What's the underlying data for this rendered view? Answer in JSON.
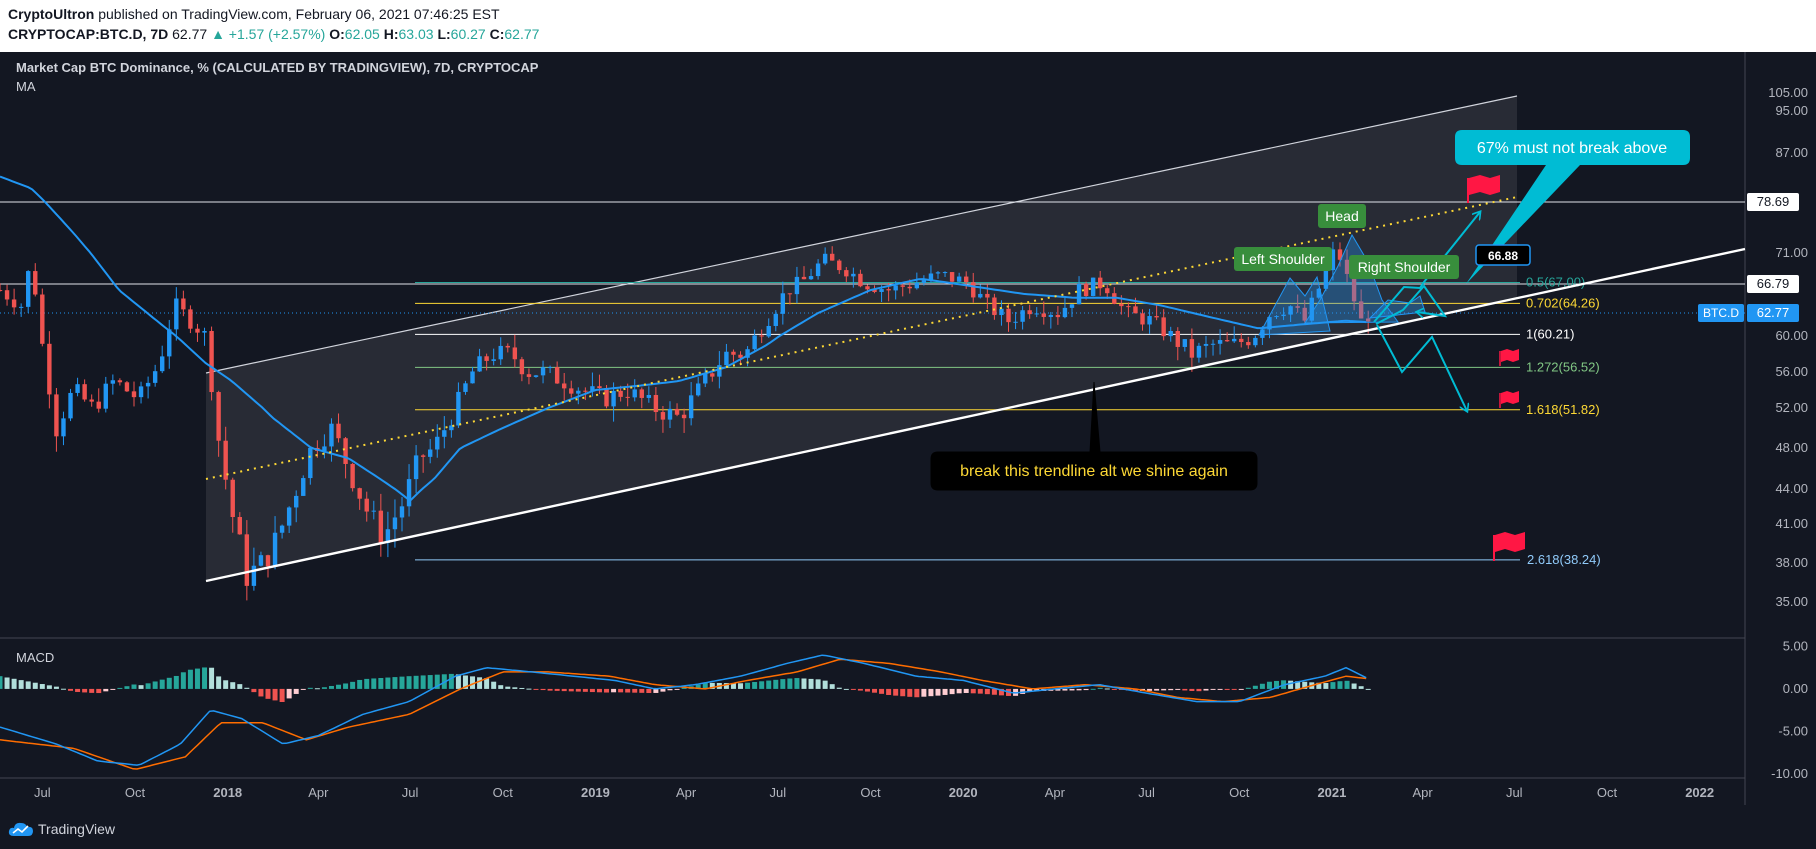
{
  "header": {
    "author": "CryptoUltron",
    "published_text": "published on TradingView.com, February 06, 2021 07:46:25 EST",
    "symbol_interval": "CRYPTOCAP:BTC.D, 7D",
    "last": "62.77",
    "change": "▲ +1.57 (+2.57%)",
    "o_label": "O:",
    "o": "62.05",
    "h_label": "H:",
    "h": "63.03",
    "l_label": "L:",
    "l": "60.27",
    "c_label": "C:",
    "c": "62.77"
  },
  "legend": {
    "title": "Market Cap BTC Dominance, % (CALCULATED BY TRADINGVIEW), 7D, CRYPTOCAP",
    "ma": "MA",
    "macd": "MACD"
  },
  "footer": {
    "brand": "TradingView"
  },
  "colors": {
    "background": "#131722",
    "up": "#2196f3",
    "down": "#ef5350",
    "ma": "#2196f3",
    "signal": "#ff6d00",
    "hist_up_strong": "#26a69a",
    "hist_up_weak": "#b2dfdb",
    "hist_down_strong": "#ef5350",
    "hist_down_weak": "#ffcdd2",
    "annotation": "#00bcd4"
  },
  "chart_data": {
    "type": "candlestick",
    "price_axis": {
      "min": 33,
      "max": 106,
      "ticks": [
        "105.00",
        "95.00",
        "87.00",
        "78.69",
        "71.00",
        "66.79",
        "60.00",
        "56.00",
        "52.00",
        "48.00",
        "44.00",
        "41.00",
        "38.00",
        "35.00"
      ],
      "tick_values": [
        105,
        95,
        87,
        78.69,
        71,
        66.79,
        60,
        56,
        52,
        48,
        44,
        41,
        38,
        35
      ]
    },
    "time_axis": {
      "ticks": [
        "Jul",
        "Oct",
        "2018",
        "Apr",
        "Jul",
        "Oct",
        "2019",
        "Apr",
        "Jul",
        "Oct",
        "2020",
        "Apr",
        "Jul",
        "Oct",
        "2021",
        "Apr",
        "Jul",
        "Oct",
        "2022"
      ],
      "start": "2017-05-20",
      "end": "2022-02-15"
    },
    "price_anchors": [
      [
        "2017-05-20",
        66
      ],
      [
        "2017-06-10",
        64
      ],
      [
        "2017-06-20",
        70
      ],
      [
        "2017-07-01",
        59
      ],
      [
        "2017-07-15",
        50
      ],
      [
        "2017-08-01",
        54
      ],
      [
        "2017-08-20",
        52
      ],
      [
        "2017-09-10",
        55
      ],
      [
        "2017-10-05",
        53
      ],
      [
        "2017-10-25",
        57
      ],
      [
        "2017-11-10",
        64
      ],
      [
        "2017-11-25",
        62
      ],
      [
        "2017-12-10",
        60
      ],
      [
        "2017-12-24",
        48
      ],
      [
        "2018-01-05",
        42
      ],
      [
        "2018-01-20",
        37
      ],
      [
        "2018-02-05",
        38
      ],
      [
        "2018-02-20",
        40
      ],
      [
        "2018-03-10",
        44
      ],
      [
        "2018-03-25",
        48
      ],
      [
        "2018-04-15",
        50
      ],
      [
        "2018-05-05",
        45
      ],
      [
        "2018-05-20",
        42
      ],
      [
        "2018-06-05",
        40
      ],
      [
        "2018-06-25",
        43
      ],
      [
        "2018-07-10",
        47
      ],
      [
        "2018-07-25",
        48
      ],
      [
        "2018-08-15",
        52
      ],
      [
        "2018-09-01",
        56
      ],
      [
        "2018-09-20",
        58
      ],
      [
        "2018-10-10",
        58
      ],
      [
        "2018-10-25",
        56
      ],
      [
        "2018-11-10",
        56
      ],
      [
        "2018-12-01",
        55
      ],
      [
        "2018-12-20",
        54
      ],
      [
        "2019-01-10",
        53
      ],
      [
        "2019-02-01",
        54
      ],
      [
        "2019-03-01",
        52
      ],
      [
        "2019-03-25",
        51
      ],
      [
        "2019-04-20",
        55
      ],
      [
        "2019-05-10",
        58
      ],
      [
        "2019-05-30",
        58
      ],
      [
        "2019-06-20",
        62
      ],
      [
        "2019-07-10",
        66
      ],
      [
        "2019-07-25",
        67
      ],
      [
        "2019-08-15",
        70
      ],
      [
        "2019-09-05",
        69
      ],
      [
        "2019-09-25",
        67
      ],
      [
        "2019-10-20",
        66
      ],
      [
        "2019-11-15",
        67
      ],
      [
        "2019-12-10",
        68
      ],
      [
        "2020-01-05",
        67
      ],
      [
        "2020-01-25",
        64
      ],
      [
        "2020-02-15",
        62
      ],
      [
        "2020-03-10",
        64
      ],
      [
        "2020-04-05",
        63
      ],
      [
        "2020-04-25",
        66
      ],
      [
        "2020-05-20",
        67
      ],
      [
        "2020-06-10",
        63
      ],
      [
        "2020-07-05",
        62
      ],
      [
        "2020-07-25",
        60
      ],
      [
        "2020-08-15",
        58
      ],
      [
        "2020-09-05",
        59
      ],
      [
        "2020-09-25",
        59
      ],
      [
        "2020-10-15",
        60
      ],
      [
        "2020-11-01",
        63
      ],
      [
        "2020-11-20",
        64
      ],
      [
        "2020-12-05",
        62
      ],
      [
        "2020-12-25",
        68
      ],
      [
        "2021-01-05",
        72
      ],
      [
        "2021-01-20",
        66
      ],
      [
        "2021-02-01",
        61
      ],
      [
        "2021-02-06",
        62.77
      ]
    ],
    "ma_anchors": [
      [
        "2017-05-20",
        83
      ],
      [
        "2017-06-20",
        81
      ],
      [
        "2017-08-01",
        74
      ],
      [
        "2017-09-15",
        66
      ],
      [
        "2017-11-01",
        61
      ],
      [
        "2017-12-10",
        57
      ],
      [
        "2018-01-05",
        55
      ],
      [
        "2018-02-15",
        51
      ],
      [
        "2018-03-25",
        48
      ],
      [
        "2018-05-01",
        47
      ],
      [
        "2018-06-01",
        45
      ],
      [
        "2018-07-01",
        43
      ],
      [
        "2018-07-25",
        45
      ],
      [
        "2018-08-20",
        48
      ],
      [
        "2018-10-01",
        50
      ],
      [
        "2018-11-15",
        52
      ],
      [
        "2019-01-01",
        54
      ],
      [
        "2019-02-15",
        54.5
      ],
      [
        "2019-03-25",
        55
      ],
      [
        "2019-05-10",
        56.5
      ],
      [
        "2019-06-20",
        59
      ],
      [
        "2019-08-10",
        63
      ],
      [
        "2019-10-01",
        66
      ],
      [
        "2019-11-20",
        67.5
      ],
      [
        "2020-01-10",
        66.5
      ],
      [
        "2020-03-01",
        65.5
      ],
      [
        "2020-04-20",
        65
      ],
      [
        "2020-06-01",
        65
      ],
      [
        "2020-07-15",
        64
      ],
      [
        "2020-09-01",
        62.5
      ],
      [
        "2020-10-20",
        61
      ],
      [
        "2020-12-01",
        61.5
      ],
      [
        "2021-01-15",
        62
      ],
      [
        "2021-02-06",
        61.8
      ]
    ],
    "macd": {
      "axis": {
        "min": -10.5,
        "max": 6,
        "ticks": [
          "5.00",
          "0.00",
          "-5.00",
          "-10.00"
        ],
        "tick_values": [
          5,
          0,
          -5,
          -10
        ]
      },
      "macd_anchors": [
        [
          "2017-05-20",
          -4.5
        ],
        [
          "2017-07-15",
          -6.5
        ],
        [
          "2017-08-25",
          -8.5
        ],
        [
          "2017-10-05",
          -9
        ],
        [
          "2017-11-15",
          -6.5
        ],
        [
          "2017-12-15",
          -2.5
        ],
        [
          "2018-01-15",
          -3.5
        ],
        [
          "2018-02-25",
          -6.5
        ],
        [
          "2018-04-01",
          -5.5
        ],
        [
          "2018-05-15",
          -3
        ],
        [
          "2018-06-30",
          -1.5
        ],
        [
          "2018-08-15",
          1.5
        ],
        [
          "2018-09-15",
          2.5
        ],
        [
          "2018-10-30",
          2
        ],
        [
          "2018-12-10",
          1.5
        ],
        [
          "2019-01-20",
          1
        ],
        [
          "2019-03-01",
          0
        ],
        [
          "2019-04-10",
          0.5
        ],
        [
          "2019-05-25",
          1.5
        ],
        [
          "2019-07-10",
          3
        ],
        [
          "2019-08-15",
          4
        ],
        [
          "2019-09-25",
          3
        ],
        [
          "2019-11-15",
          1.5
        ],
        [
          "2020-01-01",
          1
        ],
        [
          "2020-02-20",
          -0.5
        ],
        [
          "2020-04-01",
          0
        ],
        [
          "2020-05-15",
          0.5
        ],
        [
          "2020-07-01",
          -0.5
        ],
        [
          "2020-08-20",
          -1.5
        ],
        [
          "2020-10-01",
          -1.5
        ],
        [
          "2020-11-15",
          0.5
        ],
        [
          "2020-12-25",
          1.5
        ],
        [
          "2021-01-15",
          2.5
        ],
        [
          "2021-02-06",
          1.2
        ]
      ],
      "signal_anchors": [
        [
          "2017-05-20",
          -6
        ],
        [
          "2017-08-01",
          -7
        ],
        [
          "2017-10-01",
          -9.5
        ],
        [
          "2017-11-20",
          -8
        ],
        [
          "2017-12-25",
          -4
        ],
        [
          "2018-02-05",
          -4
        ],
        [
          "2018-03-20",
          -6
        ],
        [
          "2018-05-01",
          -4.5
        ],
        [
          "2018-06-30",
          -3
        ],
        [
          "2018-08-20",
          0
        ],
        [
          "2018-10-01",
          2
        ],
        [
          "2018-11-15",
          2
        ],
        [
          "2019-01-15",
          1.5
        ],
        [
          "2019-03-01",
          0.5
        ],
        [
          "2019-04-20",
          0
        ],
        [
          "2019-06-01",
          1
        ],
        [
          "2019-07-20",
          2
        ],
        [
          "2019-09-01",
          3.5
        ],
        [
          "2019-10-20",
          3
        ],
        [
          "2019-12-10",
          2
        ],
        [
          "2020-01-20",
          1
        ],
        [
          "2020-03-10",
          0
        ],
        [
          "2020-05-01",
          0.5
        ],
        [
          "2020-06-20",
          0
        ],
        [
          "2020-08-01",
          -1
        ],
        [
          "2020-09-15",
          -1.5
        ],
        [
          "2020-11-01",
          -1
        ],
        [
          "2020-12-15",
          0.5
        ],
        [
          "2021-01-15",
          1.5
        ],
        [
          "2021-02-06",
          1.2
        ]
      ]
    },
    "fib_levels": [
      {
        "ratio": "0.5",
        "value": 67.0,
        "label": "0.5(67.00)",
        "color": "#26a69a"
      },
      {
        "ratio": "0.702",
        "value": 64.26,
        "label": "0.702(64.26)",
        "color": "#fdd835"
      },
      {
        "ratio": "1",
        "value": 60.21,
        "label": "1(60.21)",
        "color": "#ffffff"
      },
      {
        "ratio": "1.272",
        "value": 56.52,
        "label": "1.272(56.52)",
        "color": "#81c784"
      },
      {
        "ratio": "1.618",
        "value": 51.82,
        "label": "1.618(51.82)",
        "color": "#fdd835"
      },
      {
        "ratio": "2.618",
        "value": 38.24,
        "label": "2.618(38.24)",
        "color": "#90caf9"
      }
    ],
    "horizontal_levels": [
      78.69,
      66.79
    ],
    "price_labels": {
      "current": "62.77",
      "current_name": "BTC.D",
      "level_78": "78.69",
      "level_66": "66.79",
      "marker": "66.88"
    },
    "annotations": {
      "head": "Head",
      "left_shoulder": "Left Shoulder",
      "right_shoulder": "Right Shoulder",
      "callout_top": "67% must not break above",
      "callout_bottom": "break this trendline alt we shine again"
    }
  }
}
